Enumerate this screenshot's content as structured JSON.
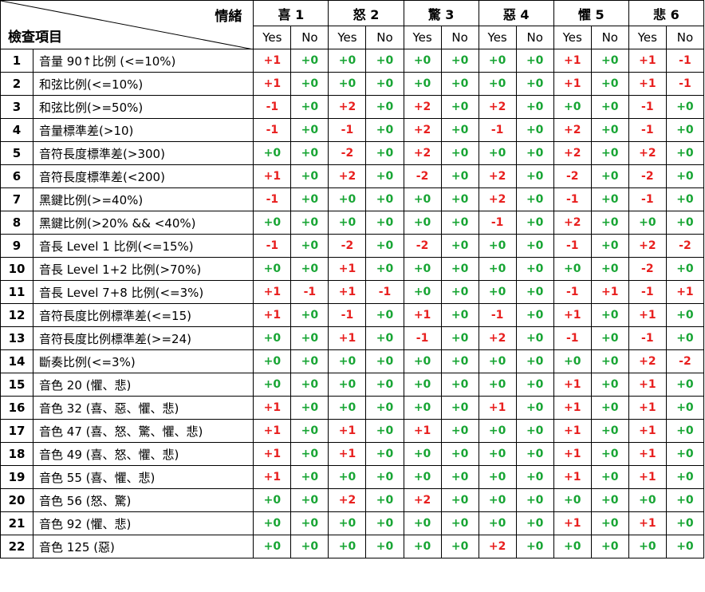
{
  "header": {
    "corner_top": "情緒",
    "corner_bottom": "檢查項目",
    "emotions": [
      "喜 1",
      "怒 2",
      "驚 3",
      "惡 4",
      "懼 5",
      "悲 6"
    ],
    "yes_label": "Yes",
    "no_label": "No"
  },
  "colors": {
    "positive": "#e8201f",
    "zero": "#18a534",
    "negative": "#e8201f"
  },
  "rows": [
    {
      "num": "1",
      "item": "音量 90↑比例  (<=10%)",
      "values": [
        "+1",
        "+0",
        "+0",
        "+0",
        "+0",
        "+0",
        "+0",
        "+0",
        "+1",
        "+0",
        "+1",
        "-1"
      ]
    },
    {
      "num": "2",
      "item": "和弦比例(<=10%)",
      "values": [
        "+1",
        "+0",
        "+0",
        "+0",
        "+0",
        "+0",
        "+0",
        "+0",
        "+1",
        "+0",
        "+1",
        "-1"
      ]
    },
    {
      "num": "3",
      "item": "和弦比例(>=50%)",
      "values": [
        "-1",
        "+0",
        "+2",
        "+0",
        "+2",
        "+0",
        "+2",
        "+0",
        "+0",
        "+0",
        "-1",
        "+0"
      ]
    },
    {
      "num": "4",
      "item": "音量標準差(>10)",
      "values": [
        "-1",
        "+0",
        "-1",
        "+0",
        "+2",
        "+0",
        "-1",
        "+0",
        "+2",
        "+0",
        "-1",
        "+0"
      ]
    },
    {
      "num": "5",
      "item": "音符長度標準差(>300)",
      "values": [
        "+0",
        "+0",
        "-2",
        "+0",
        "+2",
        "+0",
        "+0",
        "+0",
        "+2",
        "+0",
        "+2",
        "+0"
      ]
    },
    {
      "num": "6",
      "item": "音符長度標準差(<200)",
      "values": [
        "+1",
        "+0",
        "+2",
        "+0",
        "-2",
        "+0",
        "+2",
        "+0",
        "-2",
        "+0",
        "-2",
        "+0"
      ]
    },
    {
      "num": "7",
      "item": "黑鍵比例(>=40%)",
      "values": [
        "-1",
        "+0",
        "+0",
        "+0",
        "+0",
        "+0",
        "+2",
        "+0",
        "-1",
        "+0",
        "-1",
        "+0"
      ]
    },
    {
      "num": "8",
      "item": "黑鍵比例(>20% && <40%)",
      "values": [
        "+0",
        "+0",
        "+0",
        "+0",
        "+0",
        "+0",
        "-1",
        "+0",
        "+2",
        "+0",
        "+0",
        "+0"
      ]
    },
    {
      "num": "9",
      "item": "音長 Level 1 比例(<=15%)",
      "values": [
        "-1",
        "+0",
        "-2",
        "+0",
        "-2",
        "+0",
        "+0",
        "+0",
        "-1",
        "+0",
        "+2",
        "-2"
      ]
    },
    {
      "num": "10",
      "item": "音長 Level 1+2 比例(>70%)",
      "values": [
        "+0",
        "+0",
        "+1",
        "+0",
        "+0",
        "+0",
        "+0",
        "+0",
        "+0",
        "+0",
        "-2",
        "+0"
      ]
    },
    {
      "num": "11",
      "item": "音長 Level 7+8 比例(<=3%)",
      "values": [
        "+1",
        "-1",
        "+1",
        "-1",
        "+0",
        "+0",
        "+0",
        "+0",
        "-1",
        "+1",
        "-1",
        "+1"
      ]
    },
    {
      "num": "12",
      "item": "音符長度比例標準差(<=15)",
      "values": [
        "+1",
        "+0",
        "-1",
        "+0",
        "+1",
        "+0",
        "-1",
        "+0",
        "+1",
        "+0",
        "+1",
        "+0"
      ]
    },
    {
      "num": "13",
      "item": "音符長度比例標準差(>=24)",
      "values": [
        "+0",
        "+0",
        "+1",
        "+0",
        "-1",
        "+0",
        "+2",
        "+0",
        "-1",
        "+0",
        "-1",
        "+0"
      ]
    },
    {
      "num": "14",
      "item": "斷奏比例(<=3%)",
      "values": [
        "+0",
        "+0",
        "+0",
        "+0",
        "+0",
        "+0",
        "+0",
        "+0",
        "+0",
        "+0",
        "+2",
        "-2"
      ]
    },
    {
      "num": "15",
      "item": "音色 20 (懼、悲)",
      "values": [
        "+0",
        "+0",
        "+0",
        "+0",
        "+0",
        "+0",
        "+0",
        "+0",
        "+1",
        "+0",
        "+1",
        "+0"
      ]
    },
    {
      "num": "16",
      "item": "音色 32 (喜、惡、懼、悲)",
      "values": [
        "+1",
        "+0",
        "+0",
        "+0",
        "+0",
        "+0",
        "+1",
        "+0",
        "+1",
        "+0",
        "+1",
        "+0"
      ]
    },
    {
      "num": "17",
      "item": "音色 47 (喜、怒、驚、懼、悲)",
      "values": [
        "+1",
        "+0",
        "+1",
        "+0",
        "+1",
        "+0",
        "+0",
        "+0",
        "+1",
        "+0",
        "+1",
        "+0"
      ]
    },
    {
      "num": "18",
      "item": "音色 49 (喜、怒、懼、悲)",
      "values": [
        "+1",
        "+0",
        "+1",
        "+0",
        "+0",
        "+0",
        "+0",
        "+0",
        "+1",
        "+0",
        "+1",
        "+0"
      ]
    },
    {
      "num": "19",
      "item": "音色 55 (喜、懼、悲)",
      "values": [
        "+1",
        "+0",
        "+0",
        "+0",
        "+0",
        "+0",
        "+0",
        "+0",
        "+1",
        "+0",
        "+1",
        "+0"
      ]
    },
    {
      "num": "20",
      "item": "音色 56 (怒、驚)",
      "values": [
        "+0",
        "+0",
        "+2",
        "+0",
        "+2",
        "+0",
        "+0",
        "+0",
        "+0",
        "+0",
        "+0",
        "+0"
      ]
    },
    {
      "num": "21",
      "item": "音色 92 (懼、悲)",
      "values": [
        "+0",
        "+0",
        "+0",
        "+0",
        "+0",
        "+0",
        "+0",
        "+0",
        "+1",
        "+0",
        "+1",
        "+0"
      ]
    },
    {
      "num": "22",
      "item": "音色 125 (惡)",
      "values": [
        "+0",
        "+0",
        "+0",
        "+0",
        "+0",
        "+0",
        "+2",
        "+0",
        "+0",
        "+0",
        "+0",
        "+0"
      ]
    }
  ]
}
